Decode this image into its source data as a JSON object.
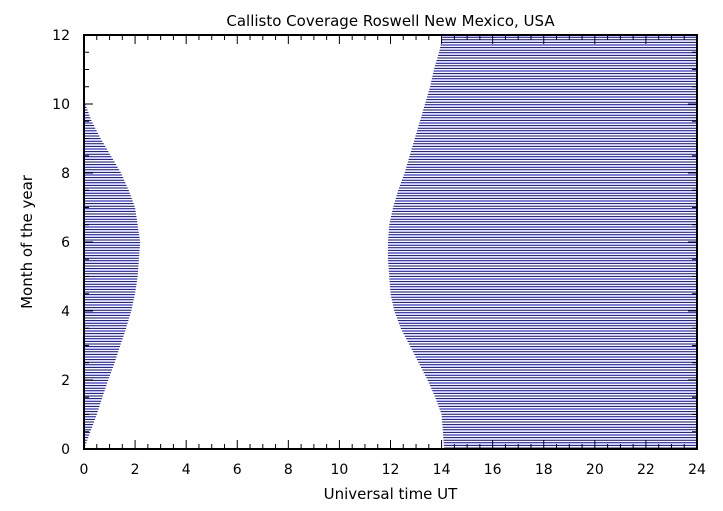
{
  "chart_data": {
    "type": "area",
    "title": "Callisto Coverage Roswell New Mexico, USA",
    "xlabel": "Universal time UT",
    "ylabel": "Month of the year",
    "xlim": [
      0,
      24
    ],
    "ylim": [
      0,
      12
    ],
    "xticks": [
      0,
      2,
      4,
      6,
      8,
      10,
      12,
      14,
      16,
      18,
      20,
      22,
      24
    ],
    "yticks": [
      0,
      2,
      4,
      6,
      8,
      10,
      12
    ],
    "hatch_color": "#0000aa",
    "grid": false,
    "series": [
      {
        "region": "left",
        "x_from": 0,
        "months": [
          0,
          0.5,
          1,
          1.5,
          2,
          2.5,
          3,
          3.5,
          4,
          4.5,
          5,
          5.5,
          6,
          6.5,
          7,
          7.5,
          8,
          8.5,
          9,
          9.5,
          10,
          10.3
        ],
        "end_ut": [
          0.0,
          0.25,
          0.5,
          0.72,
          0.95,
          1.2,
          1.42,
          1.65,
          1.85,
          2.0,
          2.1,
          2.15,
          2.2,
          2.1,
          2.0,
          1.75,
          1.45,
          1.05,
          0.65,
          0.3,
          0.05,
          0.0
        ]
      },
      {
        "region": "right",
        "x_to": 24,
        "months": [
          0,
          0.5,
          1,
          1.5,
          2,
          2.5,
          3,
          3.5,
          4,
          4.5,
          5,
          5.5,
          6,
          6.5,
          7,
          7.5,
          8,
          8.5,
          9,
          9.5,
          10,
          10.5,
          11,
          11.5,
          12
        ],
        "start_ut": [
          14.1,
          14.05,
          14.0,
          13.75,
          13.45,
          13.1,
          12.75,
          12.4,
          12.15,
          12.0,
          11.95,
          11.9,
          11.9,
          11.95,
          12.1,
          12.3,
          12.55,
          12.75,
          12.95,
          13.15,
          13.35,
          13.55,
          13.7,
          13.9,
          14.05
        ]
      }
    ]
  }
}
